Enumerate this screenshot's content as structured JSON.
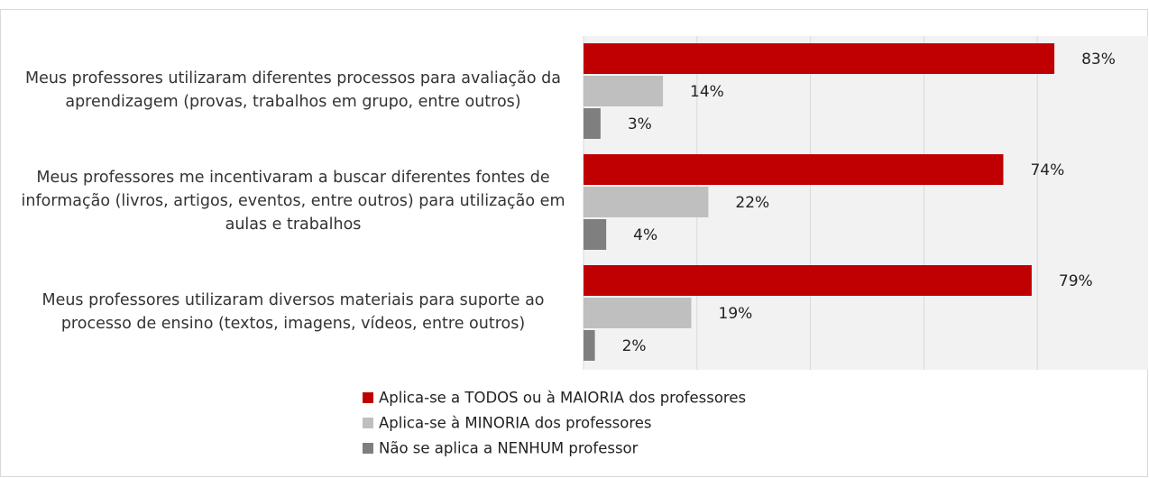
{
  "chart_data": {
    "type": "hbar",
    "categories": [
      "Meus professores utilizaram diferentes processos para avaliação da aprendizagem (provas, trabalhos em grupo, entre outros)",
      "Meus professores me incentivaram a buscar diferentes fontes de informação (livros, artigos, eventos, entre outros) para utilização em aulas e trabalhos",
      "Meus professores utilizaram diversos materiais para suporte ao processo de ensino (textos, imagens, vídeos, entre outros)"
    ],
    "series": [
      {
        "name": "Aplica-se a TODOS ou à MAIORIA dos professores",
        "color": "#c00000",
        "values": [
          83,
          74,
          79
        ],
        "value_labels": [
          "83%",
          "74%",
          "79%"
        ]
      },
      {
        "name": "Aplica-se à MINORIA dos professores",
        "color": "#bfbfbf",
        "values": [
          14,
          22,
          19
        ],
        "value_labels": [
          "14%",
          "22%",
          "19%"
        ]
      },
      {
        "name": "Não se aplica a NENHUM professor",
        "color": "#7f7f7f",
        "values": [
          3,
          4,
          2
        ],
        "value_labels": [
          "3%",
          "4%",
          "2%"
        ]
      }
    ],
    "xlim": [
      0,
      100
    ],
    "xticks": [
      0,
      20,
      40,
      60,
      80,
      100
    ],
    "grid": true
  }
}
